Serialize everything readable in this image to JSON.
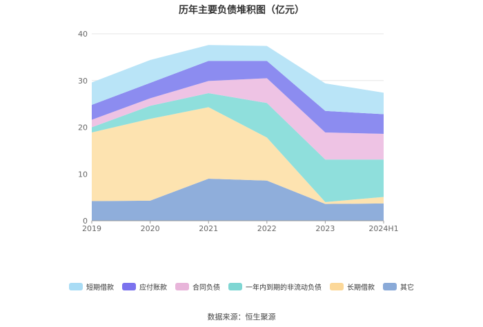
{
  "chart_data": {
    "type": "area",
    "stacked": true,
    "title": "历年主要负债堆积图（亿元）",
    "categories": [
      "2019",
      "2020",
      "2021",
      "2022",
      "2023",
      "2024H1"
    ],
    "ylim": [
      0,
      40
    ],
    "yticks": [
      0,
      10,
      20,
      30,
      40
    ],
    "grid": true,
    "legend_position": "bottom",
    "series": [
      {
        "name": "其它",
        "color": "#8faedb",
        "values": [
          4.2,
          4.3,
          9.0,
          8.6,
          3.6,
          3.7
        ]
      },
      {
        "name": "长期借款",
        "color": "#fde3b0",
        "values": [
          14.7,
          17.5,
          15.3,
          9.2,
          0.4,
          1.4
        ]
      },
      {
        "name": "一年内到期的非流动负债",
        "color": "#8fdfdc",
        "values": [
          1.1,
          2.8,
          3.0,
          7.4,
          9.1,
          8.0
        ]
      },
      {
        "name": "合同负债",
        "color": "#eec3e4",
        "values": [
          1.6,
          1.6,
          2.6,
          5.3,
          5.8,
          5.5
        ]
      },
      {
        "name": "应付账款",
        "color": "#8c8cf0",
        "values": [
          3.2,
          3.3,
          4.3,
          3.7,
          4.6,
          4.2
        ]
      },
      {
        "name": "短期借款",
        "color": "#b9e4f7",
        "values": [
          4.8,
          4.9,
          3.4,
          3.2,
          5.9,
          4.6
        ]
      }
    ]
  },
  "legend": [
    {
      "label": "短期借款",
      "color": "#a9dcf5"
    },
    {
      "label": "应付账款",
      "color": "#7b72ee"
    },
    {
      "label": "合同负债",
      "color": "#e8b5da"
    },
    {
      "label": "一年内到期的非流动负债",
      "color": "#7fd6d3"
    },
    {
      "label": "长期借款",
      "color": "#fcd899"
    },
    {
      "label": "其它",
      "color": "#8aaad8"
    }
  ],
  "source": "数据来源：恒生聚源"
}
